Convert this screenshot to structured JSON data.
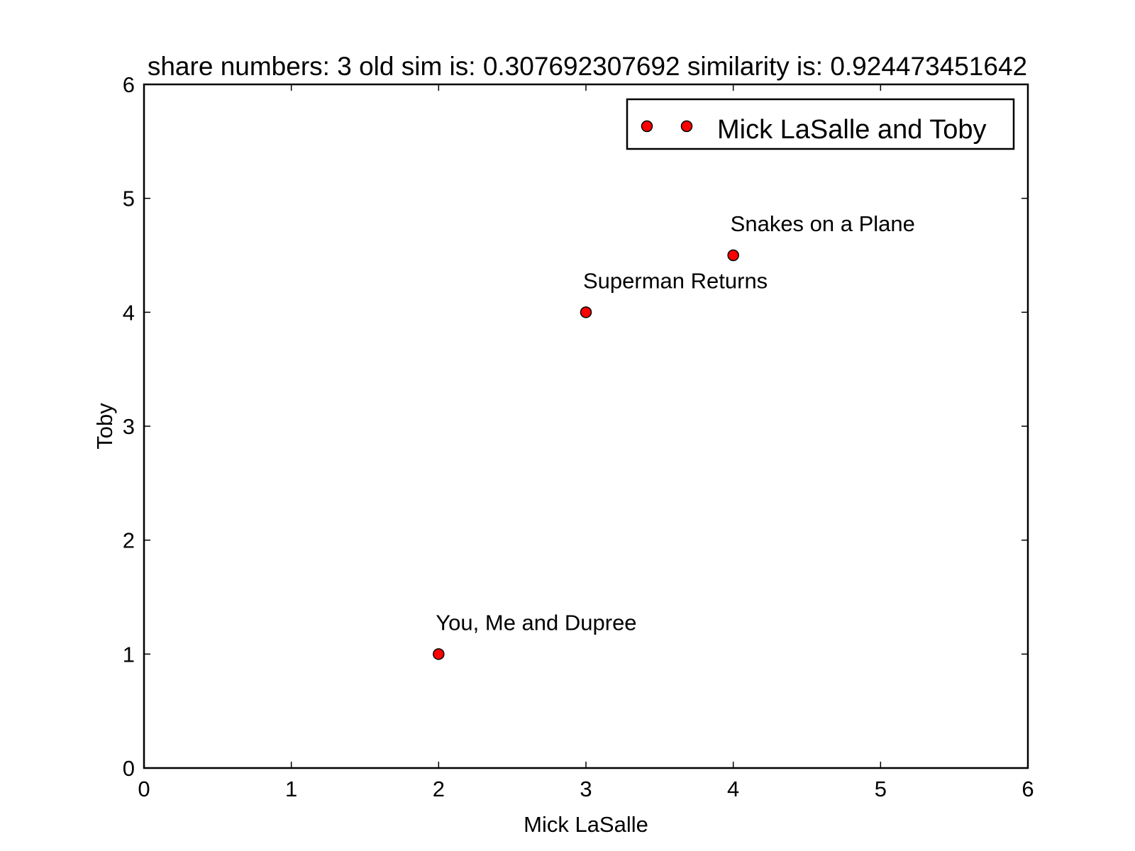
{
  "chart_data": {
    "type": "scatter",
    "title": "share numbers: 3 old sim is: 0.307692307692 similarity is: 0.924473451642",
    "xlabel": "Mick LaSalle",
    "ylabel": "Toby",
    "xlim": [
      0,
      6
    ],
    "ylim": [
      0,
      6
    ],
    "xticks": [
      "0",
      "1",
      "2",
      "3",
      "4",
      "5",
      "6"
    ],
    "yticks": [
      "0",
      "1",
      "2",
      "3",
      "4",
      "5",
      "6"
    ],
    "grid": false,
    "legend": {
      "placement": "top-right"
    },
    "series": [
      {
        "name": "Mick LaSalle and Toby",
        "color": "#ff0000",
        "marker": "circle",
        "points": [
          {
            "x": 3,
            "y": 4,
            "label": "Superman Returns"
          },
          {
            "x": 2,
            "y": 1,
            "label": "You, Me and Dupree"
          },
          {
            "x": 4,
            "y": 4.5,
            "label": "Snakes on a Plane"
          }
        ]
      }
    ]
  }
}
